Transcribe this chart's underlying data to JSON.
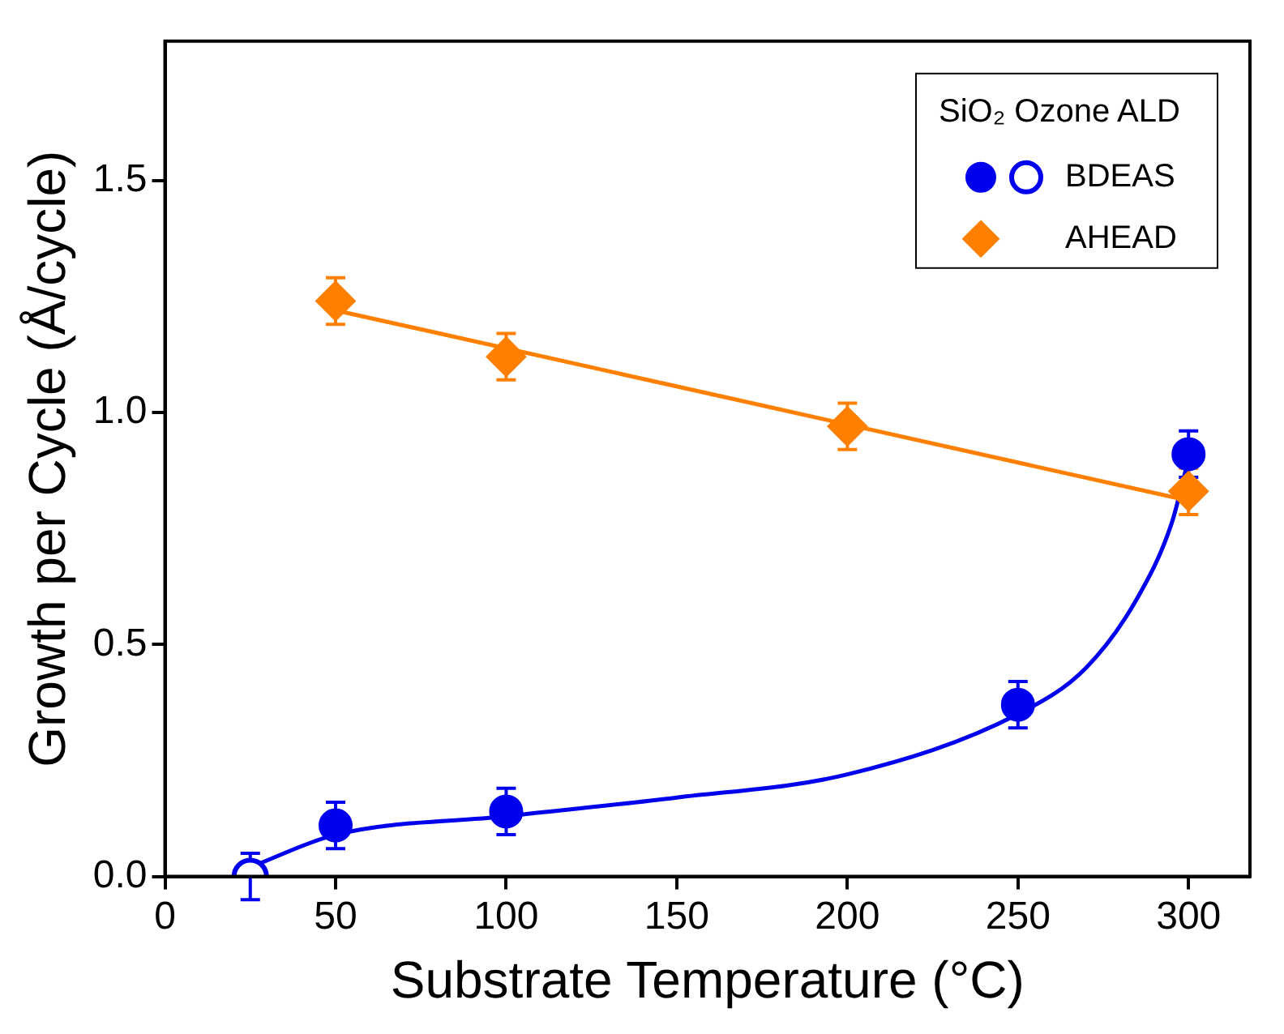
{
  "chart_data": {
    "type": "scatter",
    "xlabel": "Substrate Temperature (°C)",
    "ylabel": "Growth per Cycle (Å/cycle)",
    "legend_title": "SiO₂ Ozone ALD",
    "xlim": [
      0,
      318
    ],
    "xticks": [
      0,
      50,
      100,
      150,
      200,
      250,
      300
    ],
    "ylim": [
      0,
      1.8
    ],
    "yticks": [
      {
        "value": 0,
        "label": "0.0"
      },
      0.5,
      {
        "value": 1,
        "label": "1.0"
      },
      1.5
    ],
    "grid": false,
    "legend": "top right",
    "series": [
      {
        "name": "BDEAS",
        "marker": "circle",
        "color": "#0000ee",
        "x": [
          50,
          100,
          250,
          300
        ],
        "values": [
          0.11,
          0.14,
          0.37,
          0.91
        ],
        "errors": [
          0.05,
          0.05,
          0.05,
          0.05
        ]
      },
      {
        "marker": "circle",
        "color": "#0000ee",
        "x": [
          25
        ],
        "values": [
          0.0
        ],
        "errors": [
          0.05
        ]
      },
      {
        "name": "AHEAD",
        "marker": "diamond",
        "color": "#ff8000",
        "x": [
          50,
          100,
          200,
          300
        ],
        "values": [
          1.24,
          1.12,
          0.97,
          0.83
        ],
        "errors": [
          0.05,
          0.05,
          0.05,
          0.05
        ]
      },
      {
        "type": "line",
        "marker": "none",
        "color": "#ff8000",
        "x": [
          50,
          300
        ],
        "values": [
          1.22,
          0.81
        ]
      },
      {
        "type": "line",
        "marker": "none",
        "color": "#0000ee",
        "x": [
          25,
          50,
          100,
          150,
          200,
          250,
          270,
          285,
          295,
          300
        ],
        "values": [
          0.02,
          0.09,
          0.13,
          0.17,
          0.22,
          0.35,
          0.45,
          0.6,
          0.76,
          0.9
        ]
      }
    ]
  }
}
